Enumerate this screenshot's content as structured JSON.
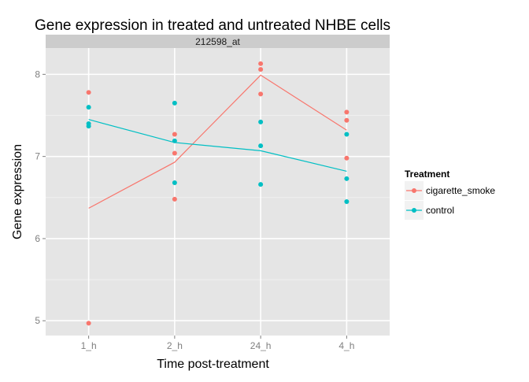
{
  "chart_data": {
    "type": "line",
    "title": "Gene expression in treated and untreated NHBE cells",
    "facet_label": "212598_at",
    "xlabel": "Time post-treatment",
    "ylabel": "Gene expression",
    "categories": [
      "1_h",
      "2_h",
      "24_h",
      "4_h"
    ],
    "ylim": [
      4.82,
      8.32
    ],
    "yticks": [
      5,
      6,
      7,
      8
    ],
    "ytick_labels": [
      "5",
      "6",
      "7",
      "8"
    ],
    "grid": true,
    "legend": {
      "title": "Treatment",
      "placement": "right"
    },
    "series": [
      {
        "name": "cigarette_smoke",
        "color": "#F8766D",
        "means": [
          6.37,
          6.93,
          7.99,
          7.32
        ],
        "points": [
          [
            "1_h",
            7.78
          ],
          [
            "1_h",
            4.97
          ],
          [
            "2_h",
            7.27
          ],
          [
            "2_h",
            7.04
          ],
          [
            "2_h",
            6.48
          ],
          [
            "24_h",
            8.13
          ],
          [
            "24_h",
            8.06
          ],
          [
            "24_h",
            7.76
          ],
          [
            "4_h",
            7.54
          ],
          [
            "4_h",
            7.44
          ],
          [
            "4_h",
            6.98
          ]
        ]
      },
      {
        "name": "control",
        "color": "#00BFC4",
        "means": [
          7.45,
          7.17,
          7.07,
          6.82
        ],
        "points": [
          [
            "1_h",
            7.6
          ],
          [
            "1_h",
            7.4
          ],
          [
            "1_h",
            7.37
          ],
          [
            "2_h",
            7.65
          ],
          [
            "2_h",
            7.19
          ],
          [
            "2_h",
            6.68
          ],
          [
            "24_h",
            7.42
          ],
          [
            "24_h",
            7.13
          ],
          [
            "24_h",
            6.66
          ],
          [
            "4_h",
            7.27
          ],
          [
            "4_h",
            6.73
          ],
          [
            "4_h",
            6.45
          ]
        ]
      }
    ]
  }
}
